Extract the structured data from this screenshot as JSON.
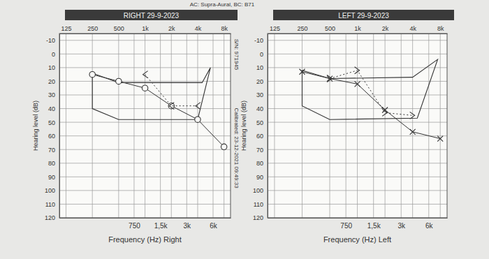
{
  "header": "AC: Supra-Aural, BC: B71",
  "side_notes": [
    "S/N: 971945",
    "Calibrated: 23-12-2021 09:49:33"
  ],
  "chart_data": [
    {
      "type": "line",
      "title": "RIGHT 29-9-2023",
      "x_label": "Frequency (Hz) Right",
      "y_label": "Hearing level (dB)",
      "log": "x",
      "grid": true,
      "xlim": [
        105,
        9500
      ],
      "ylim": [
        -15,
        120
      ],
      "x2ticks": [
        125,
        250,
        500,
        {
          "value": 1000,
          "label": "1k"
        },
        {
          "value": 2000,
          "label": "2k"
        },
        {
          "value": 4000,
          "label": "4k"
        },
        {
          "value": 8000,
          "label": "8k"
        }
      ],
      "xticks": [
        750,
        {
          "value": 1500,
          "label": "1,5k"
        },
        {
          "value": 3000,
          "label": "3k"
        },
        {
          "value": 6000,
          "label": "6k"
        }
      ],
      "yticks": [
        -10,
        0,
        10,
        20,
        30,
        40,
        50,
        60,
        70,
        80,
        90,
        100,
        110,
        120
      ],
      "series": [
        {
          "type": "area",
          "line_style": "solid",
          "color": "#333333",
          "x": [
            250,
            500,
            4500,
            5600,
            4000,
            500,
            250
          ],
          "values": [
            14,
            21,
            21,
            10,
            48,
            48,
            40
          ]
        },
        {
          "type": "line",
          "marker": "circle",
          "line_style": "solid",
          "color": "#333333",
          "x": [
            250,
            500,
            1000,
            2000,
            4000,
            8000
          ],
          "values": [
            15,
            20,
            25,
            38,
            48,
            68
          ]
        },
        {
          "type": "line",
          "marker": "lt",
          "line_style": "dotted",
          "color": "#333333",
          "x": [
            1000,
            2000,
            4000
          ],
          "values": [
            15,
            38,
            38
          ]
        }
      ]
    },
    {
      "type": "line",
      "title": "LEFT 29-9-2023",
      "x_label": "Frequency (Hz) Left",
      "y_label": "Hearing level (dB)",
      "log": "x",
      "grid": true,
      "xlim": [
        105,
        9500
      ],
      "ylim": [
        -15,
        120
      ],
      "x2ticks": [
        125,
        250,
        500,
        {
          "value": 1000,
          "label": "1k"
        },
        {
          "value": 2000,
          "label": "2k"
        },
        {
          "value": 4000,
          "label": "4k"
        },
        {
          "value": 8000,
          "label": "8k"
        }
      ],
      "xticks": [
        750,
        {
          "value": 1500,
          "label": "1,5k"
        },
        {
          "value": 3000,
          "label": "3k"
        },
        {
          "value": 6000,
          "label": "6k"
        }
      ],
      "yticks": [
        -10,
        0,
        10,
        20,
        30,
        40,
        50,
        60,
        70,
        80,
        90,
        100,
        110,
        120
      ],
      "series": [
        {
          "type": "area",
          "line_style": "solid",
          "color": "#333333",
          "x": [
            250,
            500,
            4000,
            7500,
            4500,
            500,
            250
          ],
          "values": [
            12,
            18,
            17,
            4,
            47,
            48,
            38
          ]
        },
        {
          "type": "line",
          "marker": "cross",
          "line_style": "solid",
          "color": "#333333",
          "x": [
            250,
            500,
            1000,
            2000,
            4000,
            8000
          ],
          "values": [
            13,
            18,
            22,
            41,
            57,
            62
          ]
        },
        {
          "type": "line",
          "marker": "gt",
          "line_style": "dotted",
          "color": "#333333",
          "x": [
            500,
            1000,
            2000,
            4000
          ],
          "values": [
            18,
            12,
            43,
            45
          ]
        }
      ]
    }
  ]
}
